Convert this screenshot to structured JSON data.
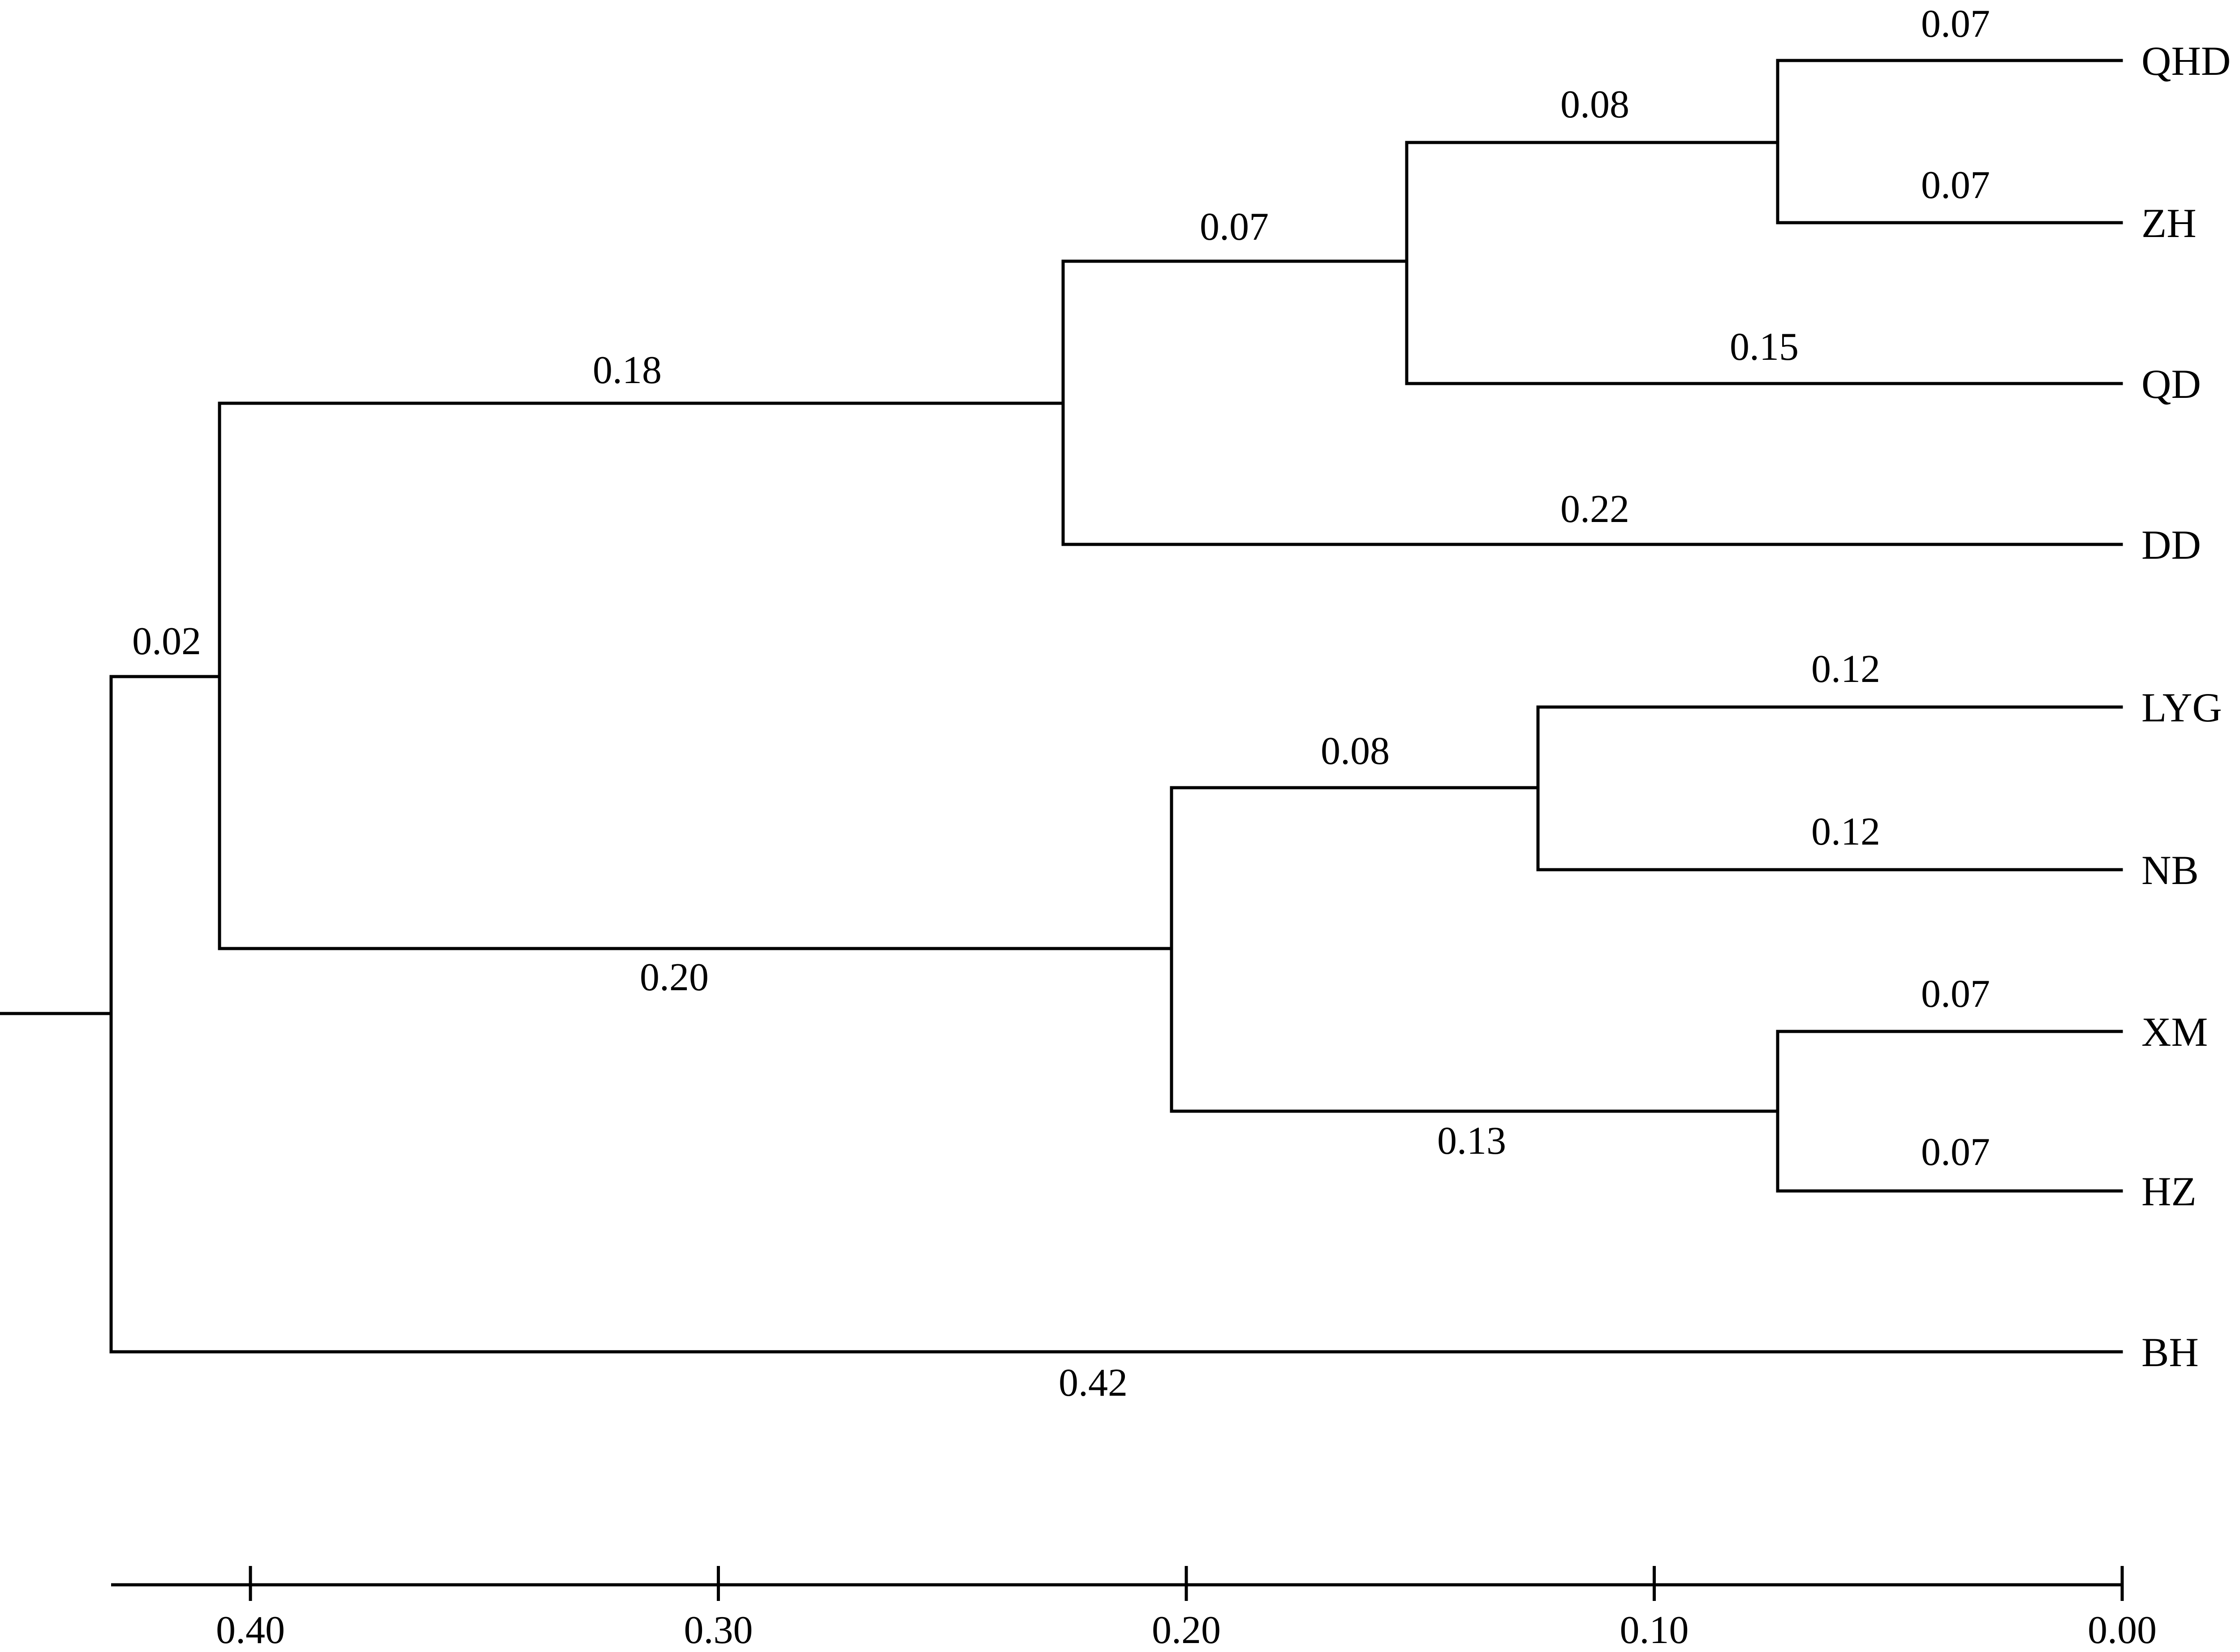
{
  "tree": {
    "leaves": [
      "QHD",
      "ZH",
      "QD",
      "DD",
      "LYG",
      "NB",
      "XM",
      "HZ",
      "BH"
    ],
    "branch_labels": {
      "root_to_main": "0.02",
      "root_to_bh": "0.42",
      "main_to_a": "0.18",
      "main_to_b": "0.20",
      "a_to_a1": "0.07",
      "a_to_dd": "0.22",
      "a1_to_a2": "0.08",
      "a1_to_qd": "0.15",
      "a2_to_qhd": "0.07",
      "a2_to_zh": "0.07",
      "b_to_b1": "0.08",
      "b_to_b2": "0.13",
      "b1_to_lyg": "0.12",
      "b1_to_nb": "0.12",
      "b2_to_xm": "0.07",
      "b2_to_hz": "0.07"
    }
  },
  "axis": {
    "ticks": [
      {
        "value": 0.4,
        "label": "0.40"
      },
      {
        "value": 0.3,
        "label": "0.30"
      },
      {
        "value": 0.2,
        "label": "0.20"
      },
      {
        "value": 0.1,
        "label": "0.10"
      },
      {
        "value": 0.0,
        "label": "0.00"
      }
    ],
    "range": [
      0.431,
      0.0
    ]
  },
  "style": {
    "line_color": "#000000",
    "background": "#ffffff"
  }
}
